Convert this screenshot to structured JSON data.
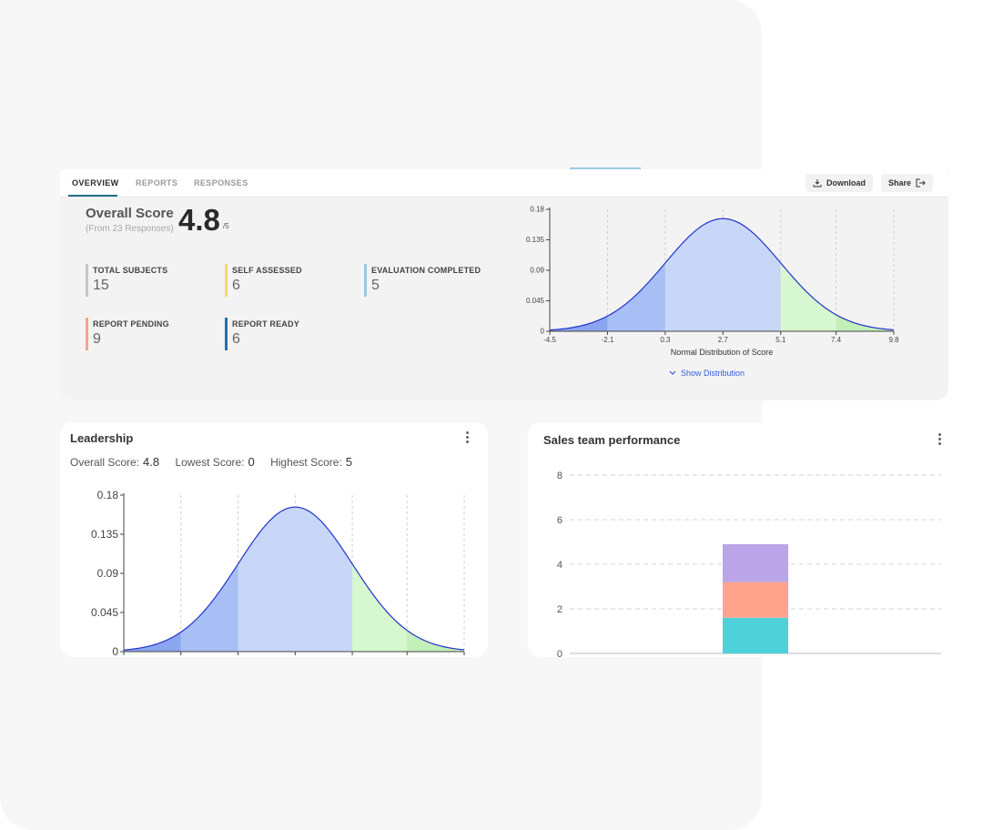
{
  "tabs": [
    {
      "label": "OVERVIEW",
      "active": true
    },
    {
      "label": "REPORTS",
      "active": false
    },
    {
      "label": "RESPONSES",
      "active": false
    }
  ],
  "toolbar": {
    "download_label": "Download",
    "share_label": "Share"
  },
  "overall": {
    "title": "Overall Score",
    "subtitle": "(From 23 Responses)",
    "score": "4.8",
    "out_of": "/5"
  },
  "stats": [
    {
      "label": "TOTAL SUBJECTS",
      "value": "15",
      "color": "#c6c6c6"
    },
    {
      "label": "SELF ASSESSED",
      "value": "6",
      "color": "#f5d76e"
    },
    {
      "label": "EVALUATION COMPLETED",
      "value": "5",
      "color": "#9ecae1"
    },
    {
      "label": "REPORT PENDING",
      "value": "9",
      "color": "#f4a58a"
    },
    {
      "label": "REPORT READY",
      "value": "6",
      "color": "#1f6fb2"
    }
  ],
  "distribution_chart": {
    "xlabel": "Normal Distribution of Score",
    "show_label": "Show Distribution",
    "x_ticks": [
      "-4.5",
      "-2.1",
      "0.3",
      "2.7",
      "5.1",
      "7.4",
      "9.8"
    ],
    "y_ticks": [
      "0",
      "0.045",
      "0.09",
      "0.135",
      "0.18"
    ]
  },
  "leadership": {
    "title": "Leadership",
    "overall_label": "Overall Score:",
    "overall_value": "4.8",
    "lowest_label": "Lowest Score:",
    "lowest_value": "0",
    "highest_label": "Highest Score:",
    "highest_value": "5",
    "y_ticks": [
      "0",
      "0.045",
      "0.09",
      "0.135",
      "0.18"
    ]
  },
  "sales": {
    "title": "Sales team performance",
    "y_ticks": [
      "0",
      "2",
      "4",
      "6",
      "8"
    ]
  },
  "chart_data": [
    {
      "type": "area",
      "title": "",
      "xlabel": "Normal Distribution of Score",
      "ylabel": "",
      "mean": 2.7,
      "sd": 2.4,
      "xlim": [
        -4.5,
        9.8
      ],
      "ylim": [
        0,
        0.18
      ],
      "regions": [
        {
          "from": -4.5,
          "to": -2.1,
          "color": "#8aa6f0"
        },
        {
          "from": -2.1,
          "to": 0.3,
          "color": "#a8bff5"
        },
        {
          "from": 0.3,
          "to": 5.1,
          "color": "#c8d7f7"
        },
        {
          "from": 5.1,
          "to": 7.4,
          "color": "#d6f7cf"
        },
        {
          "from": 7.4,
          "to": 9.8,
          "color": "#c2f0b8"
        }
      ]
    },
    {
      "type": "area",
      "title": "Leadership",
      "mean": 2.7,
      "sd": 2.4,
      "xlim": [
        -4.5,
        9.8
      ],
      "ylim": [
        0,
        0.18
      ]
    },
    {
      "type": "bar",
      "title": "Sales team performance",
      "ylim": [
        0,
        8
      ],
      "categories": [
        ""
      ],
      "series": [
        {
          "values": [
            1.6
          ],
          "color": "#4fd1d9"
        },
        {
          "values": [
            1.6
          ],
          "color": "#ffa38c"
        },
        {
          "values": [
            1.7
          ],
          "color": "#b9a5e8"
        }
      ]
    }
  ]
}
